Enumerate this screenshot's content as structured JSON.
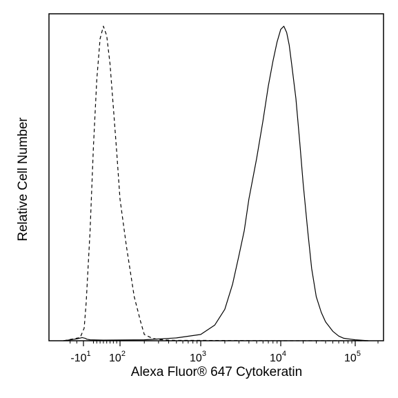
{
  "chart_data": {
    "type": "line",
    "title": "",
    "xlabel": "Alexa Fluor® 647 Cytokeratin",
    "ylabel": "Relative Cell Number",
    "x_scale": "biexponential",
    "xlim": [
      -40,
      200000
    ],
    "ylim": [
      0,
      100
    ],
    "grid": false,
    "legend": "none",
    "xticks": [
      {
        "value": -10,
        "base": "-10",
        "exp": "1"
      },
      {
        "value": 100,
        "base": "10",
        "exp": "2"
      },
      {
        "value": 1000,
        "base": "10",
        "exp": "3"
      },
      {
        "value": 10000,
        "base": "10",
        "exp": "4"
      },
      {
        "value": 100000,
        "base": "10",
        "exp": "5"
      }
    ],
    "series": [
      {
        "style": "dashed",
        "color": "#000000",
        "x": [
          -40,
          -15,
          -8,
          -2,
          10,
          20,
          30,
          40,
          50,
          60,
          70,
          80,
          90,
          100,
          120,
          150,
          180,
          200,
          250,
          300,
          350,
          400,
          500,
          1000,
          10000,
          150000
        ],
        "y": [
          0,
          1,
          4,
          12,
          35,
          62,
          83,
          96,
          100,
          97,
          88,
          74,
          60,
          45,
          30,
          14,
          6,
          2,
          0.8,
          0.4,
          0.3,
          0.2,
          0.1,
          0.1,
          0,
          0
        ]
      },
      {
        "style": "solid",
        "color": "#000000",
        "x": [
          -40,
          -20,
          -12,
          -5,
          0,
          10,
          50,
          200,
          500,
          1000,
          1500,
          2000,
          2500,
          3000,
          3500,
          4000,
          5000,
          6000,
          7000,
          8000,
          9000,
          10000,
          11000,
          12000,
          13000,
          14000,
          16000,
          18000,
          20000,
          23000,
          26000,
          30000,
          35000,
          40000,
          50000,
          60000,
          70000,
          100000,
          150000
        ],
        "y": [
          0,
          0.6,
          1.0,
          0.8,
          0.5,
          0.3,
          0.2,
          0.3,
          0.9,
          2.0,
          5,
          10,
          18,
          27,
          35,
          45,
          58,
          70,
          81,
          89,
          95,
          99,
          100,
          98,
          94,
          88,
          77,
          63,
          50,
          35,
          23,
          14,
          9,
          6,
          3,
          1.5,
          0.8,
          0.3,
          0
        ]
      }
    ]
  }
}
